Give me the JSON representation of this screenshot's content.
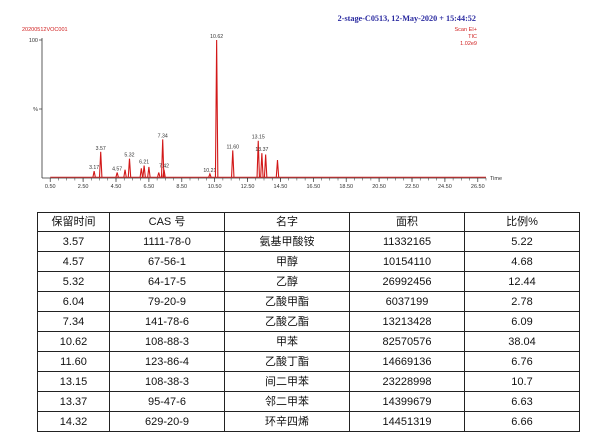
{
  "header": {
    "title_right": "2-stage-C0513,  12-May-2020 + 15:44:52",
    "sample_id": "20200512VOC001",
    "scan_mode": "Scan EI+",
    "trace": "TIC",
    "intensity": "1.02e9"
  },
  "chart_data": {
    "type": "line",
    "xlim": [
      0,
      27.0
    ],
    "ylim": [
      0,
      100
    ],
    "xticks": [
      "0.50",
      "2.50",
      "4.50",
      "6.50",
      "8.50",
      "10.50",
      "12.50",
      "14.50",
      "16.50",
      "18.50",
      "20.50",
      "22.50",
      "24.50",
      "26.50"
    ],
    "xtick_values": [
      0.5,
      2.5,
      4.5,
      6.5,
      8.5,
      10.5,
      12.5,
      14.5,
      16.5,
      18.5,
      20.5,
      22.5,
      24.5,
      26.5
    ],
    "yticks": [
      "100",
      "%"
    ],
    "ytick_values": [
      100,
      50
    ],
    "xlabel": "Time",
    "ylabel": "%",
    "color": "#d21818",
    "labeled_peaks": [
      {
        "x": 3.17,
        "y": 5,
        "label": "3.17"
      },
      {
        "x": 3.57,
        "y": 19,
        "label": "3.57"
      },
      {
        "x": 4.57,
        "y": 4,
        "label": "4.57"
      },
      {
        "x": 5.32,
        "y": 14,
        "label": "5.32"
      },
      {
        "x": 6.21,
        "y": 9,
        "label": "6.21"
      },
      {
        "x": 7.34,
        "y": 28,
        "label": "7.34"
      },
      {
        "x": 7.42,
        "y": 6,
        "label": "7.42"
      },
      {
        "x": 10.21,
        "y": 3,
        "label": "10.21"
      },
      {
        "x": 10.62,
        "y": 100,
        "label": "10.62"
      },
      {
        "x": 11.6,
        "y": 20,
        "label": "11.60"
      },
      {
        "x": 13.15,
        "y": 27,
        "label": "13.15"
      },
      {
        "x": 13.37,
        "y": 18,
        "label": "13.37"
      }
    ],
    "minor_peaks": [
      {
        "x": 5.05,
        "y": 6
      },
      {
        "x": 6.04,
        "y": 7
      },
      {
        "x": 6.5,
        "y": 8
      },
      {
        "x": 7.1,
        "y": 4
      },
      {
        "x": 13.6,
        "y": 17
      },
      {
        "x": 14.32,
        "y": 13
      }
    ]
  },
  "table": {
    "headers": [
      "保留时间",
      "CAS 号",
      "名字",
      "面积",
      "比例%"
    ],
    "rows": [
      [
        "3.57",
        "1111-78-0",
        "氨基甲酸铵",
        "11332165",
        "5.22"
      ],
      [
        "4.57",
        "67-56-1",
        "甲醇",
        "10154110",
        "4.68"
      ],
      [
        "5.32",
        "64-17-5",
        "乙醇",
        "26992456",
        "12.44"
      ],
      [
        "6.04",
        "79-20-9",
        "乙酸甲酯",
        "6037199",
        "2.78"
      ],
      [
        "7.34",
        "141-78-6",
        "乙酸乙酯",
        "13213428",
        "6.09"
      ],
      [
        "10.62",
        "108-88-3",
        "甲苯",
        "82570576",
        "38.04"
      ],
      [
        "11.60",
        "123-86-4",
        "乙酸丁酯",
        "14669136",
        "6.76"
      ],
      [
        "13.15",
        "108-38-3",
        "间二甲苯",
        "23228998",
        "10.7"
      ],
      [
        "13.37",
        "95-47-6",
        "邻二甲苯",
        "14399679",
        "6.63"
      ],
      [
        "14.32",
        "629-20-9",
        "环辛四烯",
        "14451319",
        "6.66"
      ]
    ]
  }
}
